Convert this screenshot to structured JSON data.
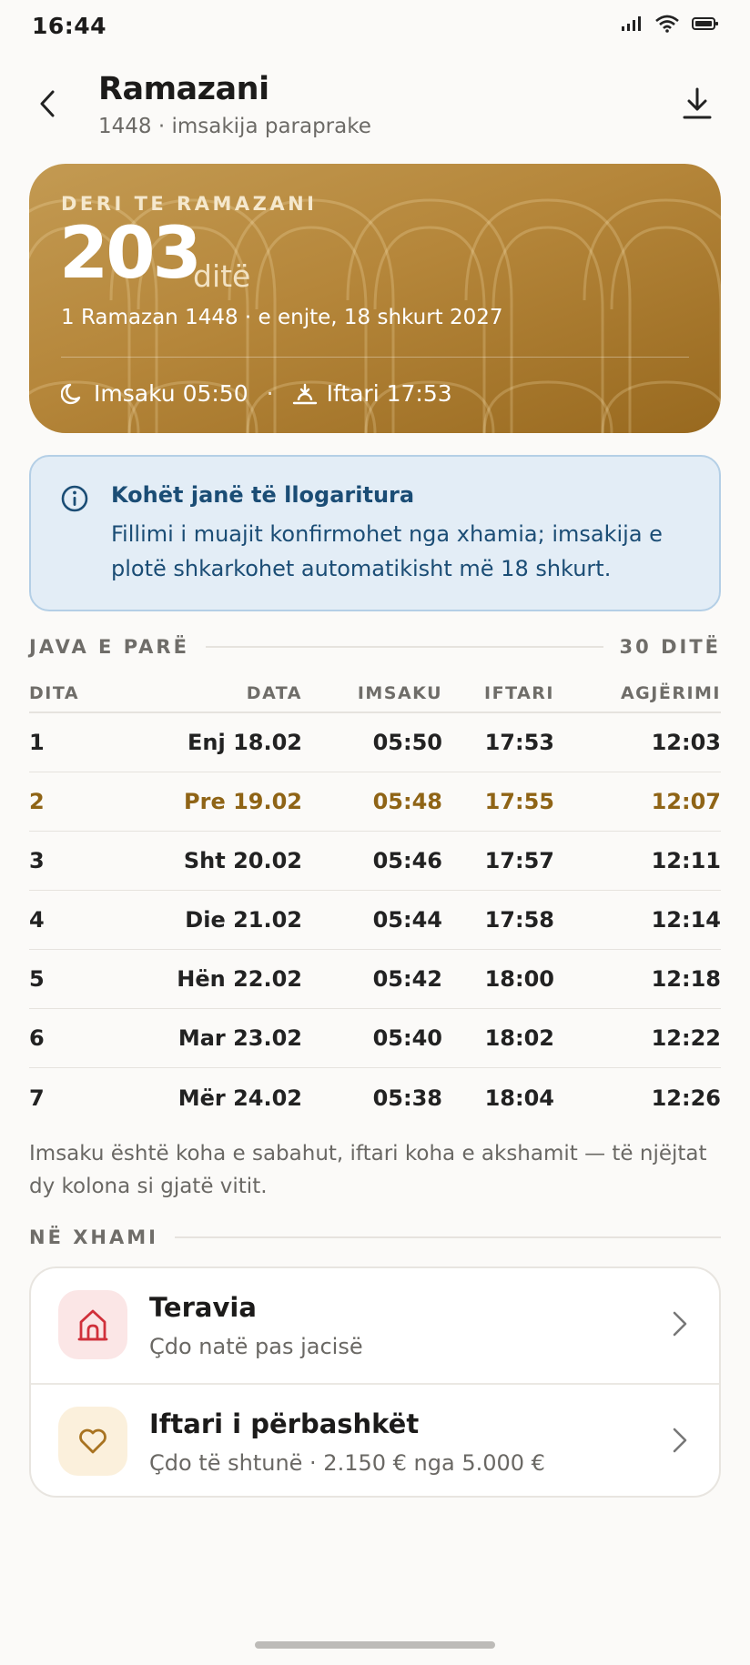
{
  "status_bar": {
    "time": "16:44"
  },
  "header": {
    "title": "Ramazani",
    "subtitle": "1448 · imsakija paraprake"
  },
  "hero": {
    "eyebrow": "DERI TE RAMAZANI",
    "count": "203",
    "unit": "ditë",
    "date": "1 Ramazan 1448 · e enjte, 18 shkurt 2027",
    "imsak": "Imsaku 05:50",
    "separator": "·",
    "iftar": "Iftari 17:53"
  },
  "notice": {
    "title": "Kohët janë të llogaritura",
    "text": "Fillimi i muajit konfirmohet nga xhamia; imsakija e plotë shkarkohet automatikisht më 18 shkurt."
  },
  "week": {
    "label": "JAVA E PARË",
    "total": "30 DITË",
    "columns": [
      "DITA",
      "DATA",
      "IMSAKU",
      "IFTARI",
      "AGJËRIMI"
    ],
    "rows": [
      {
        "day": "1",
        "date": "Enj 18.02",
        "imsak": "05:50",
        "iftar": "17:53",
        "fast": "12:03",
        "highlight": false
      },
      {
        "day": "2",
        "date": "Pre 19.02",
        "imsak": "05:48",
        "iftar": "17:55",
        "fast": "12:07",
        "highlight": true
      },
      {
        "day": "3",
        "date": "Sht 20.02",
        "imsak": "05:46",
        "iftar": "17:57",
        "fast": "12:11",
        "highlight": false
      },
      {
        "day": "4",
        "date": "Die 21.02",
        "imsak": "05:44",
        "iftar": "17:58",
        "fast": "12:14",
        "highlight": false
      },
      {
        "day": "5",
        "date": "Hën 22.02",
        "imsak": "05:42",
        "iftar": "18:00",
        "fast": "12:18",
        "highlight": false
      },
      {
        "day": "6",
        "date": "Mar 23.02",
        "imsak": "05:40",
        "iftar": "18:02",
        "fast": "12:22",
        "highlight": false
      },
      {
        "day": "7",
        "date": "Mër 24.02",
        "imsak": "05:38",
        "iftar": "18:04",
        "fast": "12:26",
        "highlight": false
      }
    ],
    "note": "Imsaku është koha e sabahut, iftari koha e akshamit — të njëjtat dy kolona si gjatë vitit."
  },
  "mosque": {
    "label": "NË XHAMI",
    "items": [
      {
        "title": "Teravia",
        "subtitle": "Çdo natë pas jacisë",
        "icon": "mosque-icon"
      },
      {
        "title": "Iftari i përbashkët",
        "subtitle": "Çdo të shtunë · 2.150 € nga 5.000 €",
        "icon": "heart-icon"
      }
    ]
  },
  "colors": {
    "accent": "#b5863a",
    "highlight_text": "#8f6416",
    "info_bg": "#e3edf6",
    "info_text": "#1b4d75",
    "teravia_icon_bg": "#fbe6e6",
    "teravia_icon": "#d0303a",
    "iftar_icon_bg": "#fbf0dc",
    "iftar_icon": "#a87320"
  }
}
